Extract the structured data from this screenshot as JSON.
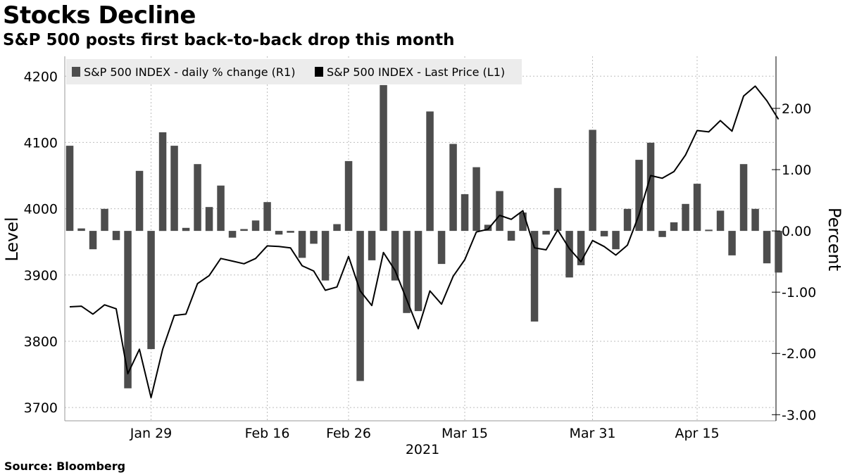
{
  "header": {
    "title": "Stocks Decline",
    "subtitle": "S&P 500 posts first back-to-back drop this month"
  },
  "footer": {
    "source": "Source:  Bloomberg"
  },
  "colors": {
    "bar": "#4d4d4d",
    "line": "#000000",
    "legend_bg": "#ececec",
    "grid": "#bdbdbd"
  },
  "chart_data": {
    "type": "bar+line",
    "title": "Stocks Decline",
    "subtitle": "S&P 500 posts first back-to-back drop this month",
    "xlabel": "2021",
    "ylabel_left": "Level",
    "ylabel_right": "Percent",
    "ylim_left": [
      3680,
      4230
    ],
    "ylim_right": [
      -3.1,
      2.85
    ],
    "yticks_left": [
      "4200",
      "4100",
      "4000",
      "3900",
      "3800",
      "3700"
    ],
    "yticks_right": [
      "2.00",
      "1.00",
      "0.00",
      "-1.00",
      "-2.00",
      "-3.00"
    ],
    "xticks": [
      {
        "label": "Jan 29",
        "index": 7
      },
      {
        "label": "Feb 16",
        "index": 17
      },
      {
        "label": "Feb 26",
        "index": 24
      },
      {
        "label": "Mar 15",
        "index": 34
      },
      {
        "label": "Mar 31",
        "index": 45
      },
      {
        "label": "Apr 15",
        "index": 54
      }
    ],
    "year_label": "2021",
    "legend": [
      "S&P 500 INDEX - daily % change (R1)",
      "S&P 500 INDEX - Last Price (L1)"
    ],
    "legend_position": "top-left",
    "grid": true,
    "series": [
      {
        "name": "S&P 500 INDEX - daily % change (R1)",
        "type": "bar",
        "axis": "right",
        "values": [
          1.39,
          0.04,
          -0.3,
          0.36,
          -0.15,
          -2.57,
          0.98,
          -1.93,
          1.61,
          1.39,
          0.05,
          1.09,
          0.39,
          0.74,
          -0.11,
          0.03,
          0.17,
          0.47,
          -0.06,
          -0.03,
          -0.44,
          -0.21,
          -0.81,
          0.11,
          1.14,
          -2.45,
          -0.48,
          2.38,
          -0.81,
          -1.34,
          -1.31,
          1.95,
          -0.54,
          1.42,
          0.6,
          1.04,
          0.1,
          0.65,
          -0.16,
          0.3,
          -1.48,
          -0.06,
          0.7,
          -0.76,
          -0.56,
          1.65,
          -0.09,
          -0.3,
          0.36,
          1.16,
          1.44,
          -0.1,
          0.14,
          0.44,
          0.77,
          0.02,
          0.33,
          -0.4,
          1.09,
          0.36,
          -0.53,
          -0.68
        ]
      },
      {
        "name": "S&P 500 INDEX - Last Price (L1)",
        "type": "line",
        "axis": "left",
        "values": [
          3852,
          3853,
          3841,
          3855,
          3849,
          3751,
          3788,
          3715,
          3788,
          3839,
          3841,
          3887,
          3899,
          3925,
          3921,
          3917,
          3925,
          3944,
          3943,
          3941,
          3914,
          3906,
          3877,
          3882,
          3928,
          3876,
          3854,
          3934,
          3907,
          3863,
          3819,
          3876,
          3856,
          3898,
          3923,
          3965,
          3969,
          3990,
          3984,
          3997,
          3941,
          3938,
          3968,
          3940,
          3920,
          3952,
          3943,
          3930,
          3945,
          3991,
          4050,
          4046,
          4056,
          4081,
          4118,
          4116,
          4133,
          4117,
          4170,
          4185,
          4163,
          4135
        ]
      }
    ]
  }
}
